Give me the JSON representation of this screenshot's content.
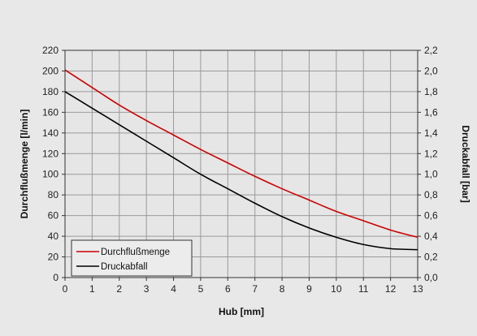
{
  "chart_data": {
    "type": "line",
    "title": "",
    "xlabel": "Hub [mm]",
    "ylabel": "Durchflußmenge [l/min]",
    "y2label": "Druckabfall [bar]",
    "xlim": [
      0,
      13
    ],
    "ylim": [
      0,
      220
    ],
    "y2lim": [
      0,
      2.2
    ],
    "x_ticks": [
      "0",
      "1",
      "2",
      "3",
      "4",
      "5",
      "6",
      "7",
      "8",
      "9",
      "10",
      "11",
      "12",
      "13"
    ],
    "y_ticks": [
      "0",
      "20",
      "40",
      "60",
      "80",
      "100",
      "120",
      "140",
      "160",
      "180",
      "200",
      "220"
    ],
    "y2_ticks": [
      "0,0",
      "0,2",
      "0,4",
      "0,6",
      "0,8",
      "1,0",
      "1,2",
      "1,4",
      "1,6",
      "1,8",
      "2,0",
      "2,2"
    ],
    "grid": true,
    "legend_position": "bottom-left",
    "x": [
      0,
      1,
      2,
      3,
      4,
      5,
      6,
      7,
      8,
      9,
      10,
      11,
      12,
      13
    ],
    "series": [
      {
        "name": "Durchflußmenge",
        "axis": "left",
        "color": "#cc0000",
        "values": [
          201,
          184,
          167,
          152,
          138,
          124,
          111,
          98,
          86,
          75,
          64,
          55,
          46,
          39
        ]
      },
      {
        "name": "Druckabfall",
        "axis": "right",
        "color": "#000000",
        "values": [
          1.8,
          1.64,
          1.48,
          1.32,
          1.16,
          1.0,
          0.86,
          0.72,
          0.59,
          0.48,
          0.39,
          0.32,
          0.28,
          0.27
        ]
      }
    ]
  }
}
